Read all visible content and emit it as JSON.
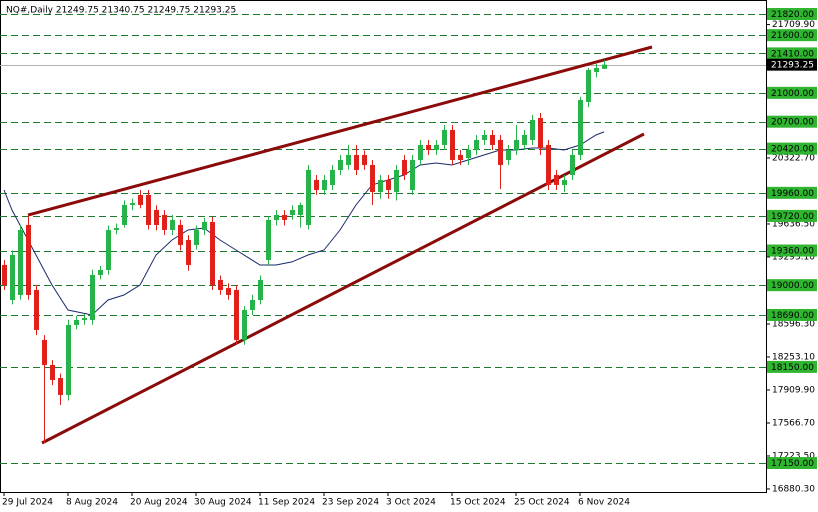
{
  "chart_data": {
    "type": "candlestick",
    "title": "NQ#,Daily  21249.75 21340.75 21249.75 21293.25",
    "categories": [
      "29 Jul 2024",
      null,
      null,
      null,
      null,
      null,
      null,
      null,
      "8 Aug 2024",
      null,
      null,
      null,
      null,
      null,
      null,
      null,
      "20 Aug 2024",
      null,
      null,
      null,
      null,
      null,
      null,
      null,
      "30 Aug 2024",
      null,
      null,
      null,
      null,
      null,
      null,
      null,
      "11 Sep 2024",
      null,
      null,
      null,
      null,
      null,
      null,
      null,
      "23 Sep 2024",
      null,
      null,
      null,
      null,
      null,
      null,
      null,
      "3 Oct 2024",
      null,
      null,
      null,
      null,
      null,
      null,
      null,
      "15 Oct 2024",
      null,
      null,
      null,
      null,
      null,
      null,
      null,
      "25 Oct 2024",
      null,
      null,
      null,
      null,
      null,
      null,
      null,
      "6 Nov 2024",
      null,
      null,
      null
    ],
    "open": [
      19210,
      18846,
      18898,
      19626,
      18950,
      18430,
      18170,
      18034,
      17858,
      18586,
      18638,
      18638,
      19106,
      19158,
      19574,
      19626,
      19834,
      19938,
      19938,
      19782,
      19730,
      19574,
      19626,
      19470,
      19418,
      19574,
      19657,
      19054,
      18970,
      18950,
      18430,
      18742,
      18846,
      19262,
      19678,
      19730,
      19730,
      19730,
      19626,
      20094,
      19990,
      20042,
      20198,
      20250,
      20354,
      20354,
      20250,
      19969,
      20094,
      19969,
      20302,
      19990,
      20302,
      20458,
      20406,
      20458,
      20614,
      20354,
      20322,
      20406,
      20510,
      20562,
      20510,
      20302,
      20406,
      20458,
      20510,
      20738,
      20458,
      20146,
      20042,
      20146,
      20354,
      20905,
      21217,
      21249.75
    ],
    "high": [
      19260,
      19360,
      19620,
      19730,
      19000,
      18480,
      18220,
      18080,
      18640,
      18680,
      18700,
      19160,
      19200,
      19620,
      19640,
      19880,
      19900,
      19990,
      19990,
      19830,
      19780,
      19730,
      19680,
      19520,
      19620,
      19700,
      19710,
      19100,
      19020,
      19000,
      18780,
      18900,
      19100,
      19720,
      19780,
      19780,
      19830,
      19860,
      20250,
      20146,
      20146,
      20250,
      20354,
      20458,
      20458,
      20400,
      20302,
      20146,
      20146,
      20250,
      20354,
      20354,
      20510,
      20510,
      20510,
      20666,
      20666,
      20406,
      20458,
      20562,
      20614,
      20614,
      20562,
      20458,
      20666,
      20614,
      20770,
      20790,
      20510,
      20198,
      20146,
      20406,
      20960,
      21260,
      21300,
      21340.75
    ],
    "low": [
      18950,
      18800,
      18850,
      18850,
      18480,
      17358,
      17960,
      17754,
      17800,
      18540,
      18590,
      18590,
      19060,
      19110,
      19530,
      19600,
      19780,
      19800,
      19580,
      19570,
      19520,
      19520,
      19360,
      19150,
      19370,
      19520,
      18950,
      18900,
      18850,
      18380,
      18380,
      18690,
      18800,
      19210,
      19620,
      19620,
      19680,
      19600,
      19580,
      19940,
      19940,
      19990,
      20146,
      20200,
      20146,
      20200,
      19834,
      19900,
      19900,
      19880,
      20094,
      19940,
      20250,
      20354,
      20354,
      20406,
      20250,
      20250,
      20250,
      20354,
      20458,
      20406,
      20000,
      20250,
      20354,
      20406,
      20458,
      20354,
      19990,
      19990,
      19969,
      20094,
      20302,
      20850,
      21160,
      21249.75
    ],
    "close": [
      19002,
      19314,
      19574,
      18898,
      18534,
      18170,
      18014,
      17858,
      18586,
      18638,
      18658,
      19106,
      19158,
      19574,
      19594,
      19834,
      19854,
      19834,
      19626,
      19626,
      19574,
      19678,
      19418,
      19210,
      19574,
      19657,
      19002,
      18950,
      18898,
      18430,
      18742,
      18846,
      19054,
      19678,
      19730,
      19678,
      19782,
      19834,
      20198,
      19990,
      20094,
      20198,
      20302,
      20354,
      20198,
      20250,
      19969,
      20094,
      19990,
      20198,
      20146,
      20302,
      20458,
      20406,
      20458,
      20614,
      20302,
      20302,
      20406,
      20510,
      20562,
      20458,
      20250,
      20406,
      20510,
      20562,
      20718,
      20426,
      20042,
      20042,
      20094,
      20354,
      20926,
      21238,
      21258,
      21293.25
    ],
    "up_color": "#25b34a",
    "down_color": "#e0201b",
    "ma": {
      "color": "#1a2a6c",
      "x": [
        0,
        1,
        2,
        4,
        6,
        8,
        11,
        13,
        15,
        17,
        19,
        21,
        23,
        25,
        27,
        29,
        32,
        34,
        36,
        38,
        40,
        42,
        44,
        46,
        48,
        50,
        52,
        54,
        56,
        58,
        60,
        62,
        64,
        66,
        68,
        70,
        72,
        74,
        75
      ],
      "values": [
        19990,
        19782,
        19626,
        19314,
        19002,
        18742,
        18690,
        18846,
        18898,
        19002,
        19314,
        19470,
        19574,
        19594,
        19470,
        19366,
        19210,
        19210,
        19242,
        19314,
        19366,
        19574,
        19834,
        20042,
        20094,
        20146,
        20250,
        20270,
        20250,
        20302,
        20354,
        20406,
        20406,
        20426,
        20426,
        20406,
        20458,
        20562,
        20594
      ]
    },
    "trendlines": [
      {
        "color": "#8b0a0a",
        "x": [
          3,
          81
        ],
        "values": [
          19729,
          21477
        ]
      },
      {
        "color": "#8b0a0a",
        "x": [
          4.75,
          80
        ],
        "values": [
          17358,
          20572
        ]
      }
    ],
    "levels": [
      {
        "value": 21820,
        "label": "21820.00"
      },
      {
        "value": 21600,
        "label": "21600.00"
      },
      {
        "value": 21410,
        "label": "21410.00"
      },
      {
        "value": 21000,
        "label": "21000.00"
      },
      {
        "value": 20700,
        "label": "20700.00"
      },
      {
        "value": 20420,
        "label": "20420.00"
      },
      {
        "value": 19960,
        "label": "19960.00"
      },
      {
        "value": 19720,
        "label": "19720.00"
      },
      {
        "value": 19360,
        "label": "19360.00"
      },
      {
        "value": 19000,
        "label": "19000.00"
      },
      {
        "value": 18690,
        "label": "18690.00"
      },
      {
        "value": 18150,
        "label": "18150.00"
      },
      {
        "value": 17150,
        "label": "17150.00"
      }
    ],
    "level_color": "#1f7a2e",
    "level_label_color": "#2fb52f",
    "last_price": 21293.25,
    "last_price_color": "#000000",
    "yticks": [
      {
        "value": 21709.9,
        "label": "21709.90"
      },
      {
        "value": 20322.7,
        "label": "20322.70"
      },
      {
        "value": 19636.5,
        "label": "19636.50"
      },
      {
        "value": 19293.1,
        "label": "19293.10"
      },
      {
        "value": 18596.3,
        "label": "18596.30"
      },
      {
        "value": 18253.1,
        "label": "18253.10"
      },
      {
        "value": 17909.9,
        "label": "17909.90"
      },
      {
        "value": 17566.7,
        "label": "17566.70"
      },
      {
        "value": 17223.5,
        "label": "17223.50"
      },
      {
        "value": 16880.3,
        "label": "16880.30"
      }
    ],
    "xlim": [
      -0.5,
      95.25
    ],
    "ylim": [
      16848.8,
      21965.6
    ]
  }
}
